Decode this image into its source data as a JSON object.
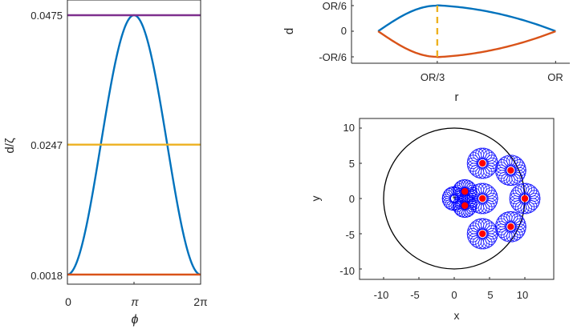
{
  "chart_data": [
    {
      "type": "line",
      "xlabel": "ϕ",
      "ylabel": "d/ζ",
      "xticks": [
        "0",
        "π",
        "2π"
      ],
      "xlim": [
        0,
        6.2832
      ],
      "yticks": [
        "0.0018",
        "0.0247",
        "0.0475"
      ],
      "ylim": [
        0.0018,
        0.0475
      ],
      "series": [
        {
          "color": "#0072BD",
          "shape": "raised-cosine",
          "x": [
            0,
            0.7854,
            1.5708,
            2.3562,
            3.1416,
            3.927,
            4.7124,
            5.4978,
            6.2832
          ],
          "values": [
            0.0018,
            0.0085,
            0.0247,
            0.0408,
            0.0475,
            0.0408,
            0.0247,
            0.0085,
            0.0018
          ]
        },
        {
          "color": "#7E2F8E",
          "x": [
            0,
            6.2832
          ],
          "values": [
            0.0475,
            0.0475
          ]
        },
        {
          "color": "#EDB120",
          "x": [
            0,
            6.2832
          ],
          "values": [
            0.0247,
            0.0247
          ]
        },
        {
          "color": "#D95319",
          "x": [
            0,
            6.2832
          ],
          "values": [
            0.0018,
            0.0018
          ]
        }
      ]
    },
    {
      "type": "line",
      "xlabel": "r",
      "ylabel": "d",
      "xticks": [
        "OR/3",
        "OR"
      ],
      "yticks": [
        "OR/6",
        "0",
        "-OR/6"
      ],
      "xlim": [
        -0.15,
        1.08
      ],
      "ylim": [
        -0.1833,
        0.1833
      ],
      "series": [
        {
          "color": "#0072BD",
          "x": [
            0,
            0.1667,
            0.3333,
            0.5,
            0.6667,
            0.8333,
            1.0
          ],
          "values": [
            0,
            0.1313,
            0.1667,
            0.1313,
            0.0833,
            0.0354,
            0
          ]
        },
        {
          "color": "#D95319",
          "x": [
            0,
            0.1667,
            0.3333,
            0.5,
            0.6667,
            0.8333,
            1.0
          ],
          "values": [
            0,
            -0.1313,
            -0.1667,
            -0.1313,
            -0.0833,
            -0.0354,
            0
          ]
        },
        {
          "color": "#EDB120",
          "style": "dashed",
          "x": [
            0.3333,
            0.3333
          ],
          "values": [
            -0.1667,
            0.1667
          ]
        }
      ]
    },
    {
      "type": "scatter",
      "xlabel": "x",
      "ylabel": "y",
      "xticks": [
        "-10",
        "-5",
        "0",
        "5",
        "10"
      ],
      "yticks": [
        "10",
        "5",
        "0",
        "-5",
        "-10"
      ],
      "xlim": [
        -15,
        15
      ],
      "ylim": [
        -12,
        12
      ],
      "boundary_circle": {
        "cx": 0,
        "cy": 0,
        "r": 10,
        "color": "#000000"
      },
      "centers": {
        "color": "#FF0000",
        "points": [
          [
            4,
            5
          ],
          [
            8,
            4
          ],
          [
            10,
            0
          ],
          [
            8,
            -4
          ],
          [
            4,
            -5
          ],
          [
            4,
            0
          ],
          [
            1.5,
            1
          ],
          [
            1.5,
            -1
          ]
        ]
      },
      "rings": {
        "color": "#0000FF",
        "items": [
          {
            "cx": 4,
            "cy": 5,
            "r": 1.4
          },
          {
            "cx": 8,
            "cy": 4,
            "r": 1.4
          },
          {
            "cx": 10,
            "cy": 0,
            "r": 1.4
          },
          {
            "cx": 8,
            "cy": -4,
            "r": 1.4
          },
          {
            "cx": 4,
            "cy": -5,
            "r": 1.4
          },
          {
            "cx": 4,
            "cy": 0,
            "r": 1.4
          },
          {
            "cx": 1.5,
            "cy": 1,
            "r": 1.1
          },
          {
            "cx": 1.5,
            "cy": -1,
            "r": 1.1
          },
          {
            "cx": 0,
            "cy": 0,
            "r": 1.1
          }
        ]
      },
      "origin_marker": "*"
    }
  ]
}
